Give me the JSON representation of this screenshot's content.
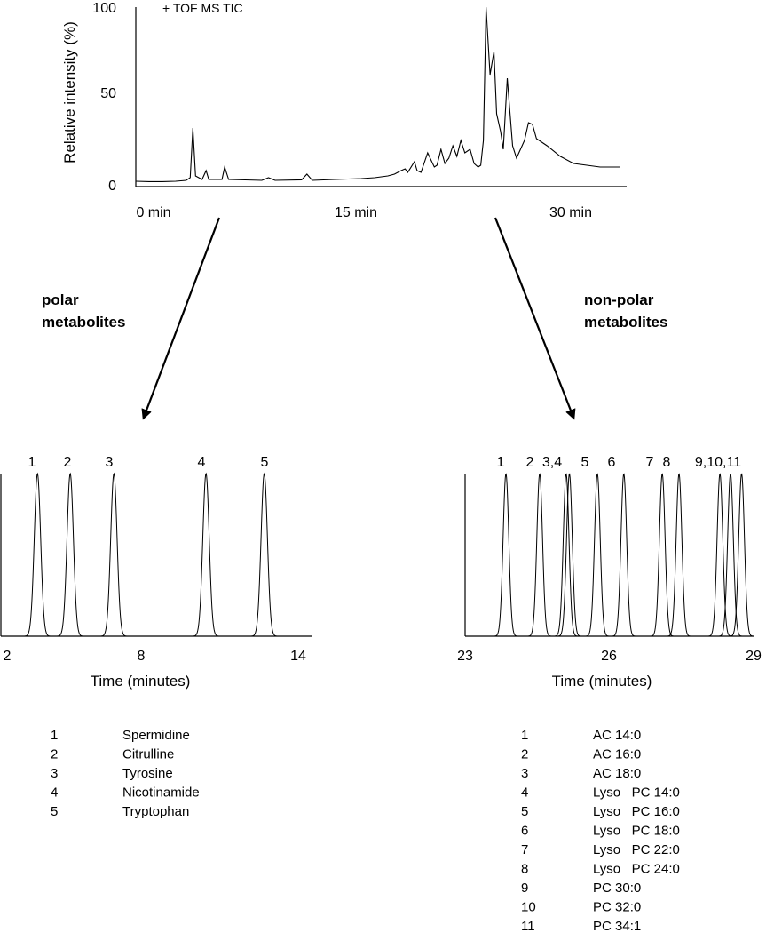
{
  "chart_data": [
    {
      "type": "line",
      "label": "+ TOF MS TIC",
      "ylabel": "Relative intensity (%)",
      "xlabel": "",
      "ylim": [
        0,
        100
      ],
      "yticks": [
        "0",
        "50",
        "100"
      ],
      "xlim": [
        0,
        37
      ],
      "xticks": [
        {
          "value": 0,
          "label": "0 min"
        },
        {
          "value": 15,
          "label": "15 min"
        },
        {
          "value": 30,
          "label": "30 min"
        }
      ],
      "series": [
        {
          "x": [
            0,
            1,
            2,
            3,
            3.8,
            4.1,
            4.3,
            4.5,
            5,
            5.3,
            5.5,
            6.5,
            6.7,
            7,
            9.5,
            10,
            10.5,
            12.5,
            12.9,
            13.3,
            15,
            17,
            18,
            19,
            19.5,
            20,
            20.3,
            20.5,
            21,
            21.2,
            21.5,
            22,
            22.5,
            22.7,
            23,
            23.3,
            23.6,
            23.9,
            24.2,
            24.5,
            24.8,
            25.2,
            25.5,
            25.8,
            26,
            26.2,
            26.4,
            26.7,
            27,
            27.2,
            27.5,
            27.7,
            28,
            28.4,
            28.7,
            29,
            29.3,
            29.6,
            29.9,
            30.2,
            31,
            32,
            33,
            34,
            35,
            36.5
          ],
          "y": [
            2,
            1.8,
            1.8,
            2,
            2.5,
            4,
            32,
            5,
            3,
            8,
            3,
            3,
            10,
            3,
            2.5,
            4,
            2.5,
            2.8,
            6,
            2.5,
            3,
            3.5,
            4,
            5,
            6,
            8,
            9,
            7,
            13,
            8,
            7,
            18,
            10,
            11,
            20,
            12,
            15,
            22,
            16,
            25,
            18,
            20,
            12,
            10,
            11,
            25,
            100,
            62,
            75,
            40,
            30,
            20,
            60,
            22,
            15,
            20,
            25,
            35,
            34,
            26,
            22,
            16,
            12,
            11,
            10,
            10
          ]
        }
      ],
      "annotation": "polar metabolites"
    },
    {
      "type": "line",
      "xlabel": "Time (minutes)",
      "xlim": [
        2,
        14
      ],
      "xticks": [
        "2",
        "8",
        "14"
      ],
      "series": [
        {
          "name": "1",
          "peak": 3.25
        },
        {
          "name": "2",
          "peak": 4.6
        },
        {
          "name": "3",
          "peak": 6.4
        },
        {
          "name": "4",
          "peak": 10.2
        },
        {
          "name": "5",
          "peak": 12.6
        }
      ],
      "peak_labels": [
        "1",
        "2",
        "3",
        "4",
        "5"
      ],
      "legend": [
        {
          "num": "1",
          "name": "Spermidine"
        },
        {
          "num": "2",
          "name": "Citrulline"
        },
        {
          "num": "3",
          "name": "Tyrosine"
        },
        {
          "num": "4",
          "name": "Nicotinamide"
        },
        {
          "num": "5",
          "name": "Tryptophan"
        }
      ]
    },
    {
      "type": "line",
      "xlabel": "Time (minutes)",
      "xlim": [
        23,
        29
      ],
      "xticks": [
        "23",
        "26",
        "29"
      ],
      "series": [
        {
          "name": "1",
          "peak": 23.85
        },
        {
          "name": "2",
          "peak": 24.55
        },
        {
          "name": "3",
          "peak": 25.1
        },
        {
          "name": "4",
          "peak": 25.17
        },
        {
          "name": "5",
          "peak": 25.75
        },
        {
          "name": "6",
          "peak": 26.3
        },
        {
          "name": "7",
          "peak": 27.1
        },
        {
          "name": "8",
          "peak": 27.45
        },
        {
          "name": "9",
          "peak": 28.3
        },
        {
          "name": "10",
          "peak": 28.52
        },
        {
          "name": "11",
          "peak": 28.75
        }
      ],
      "peak_labels": [
        "1",
        "2",
        "3,4",
        "5",
        "6",
        "7",
        "8",
        "9,10,11"
      ],
      "annotation": "non-polar metabolites",
      "legend": [
        {
          "num": "1",
          "name": "AC 14:0"
        },
        {
          "num": "2",
          "name": "AC 16:0"
        },
        {
          "num": "3",
          "name": "AC 18:0"
        },
        {
          "num": "4",
          "name": "Lyso   PC 14:0"
        },
        {
          "num": "5",
          "name": "Lyso   PC 16:0"
        },
        {
          "num": "6",
          "name": "Lyso   PC 18:0"
        },
        {
          "num": "7",
          "name": "Lyso   PC 22:0"
        },
        {
          "num": "8",
          "name": "Lyso   PC 24:0"
        },
        {
          "num": "9",
          "name": "PC 30:0"
        },
        {
          "num": "10",
          "name": "PC 32:0"
        },
        {
          "num": "11",
          "name": "PC 34:1"
        }
      ]
    }
  ],
  "annotations": {
    "polar_line1": "polar",
    "polar_line2": "metabolites",
    "nonpolar_line1": "non-polar",
    "nonpolar_line2": "metabolites"
  }
}
